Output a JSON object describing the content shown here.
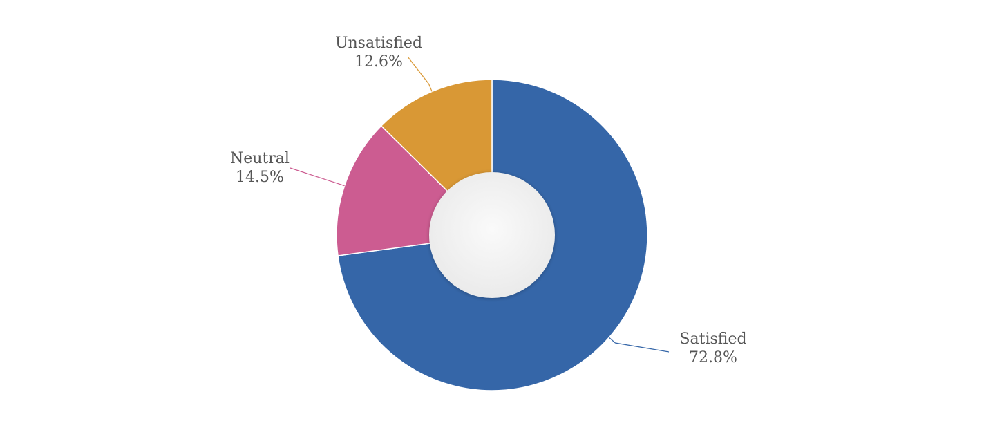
{
  "chart_data": {
    "type": "pie",
    "variant": "donut",
    "title": "",
    "slices": [
      {
        "label": "Satisfied",
        "value": 72.8,
        "value_label": "72.8%",
        "color": "#3566a8"
      },
      {
        "label": "Neutral",
        "value": 14.5,
        "value_label": "14.5%",
        "color": "#cc5c91"
      },
      {
        "label": "Unsatisfied",
        "value": 12.6,
        "value_label": "12.6%",
        "color": "#d99835"
      }
    ],
    "legend": "none",
    "grid": false
  }
}
